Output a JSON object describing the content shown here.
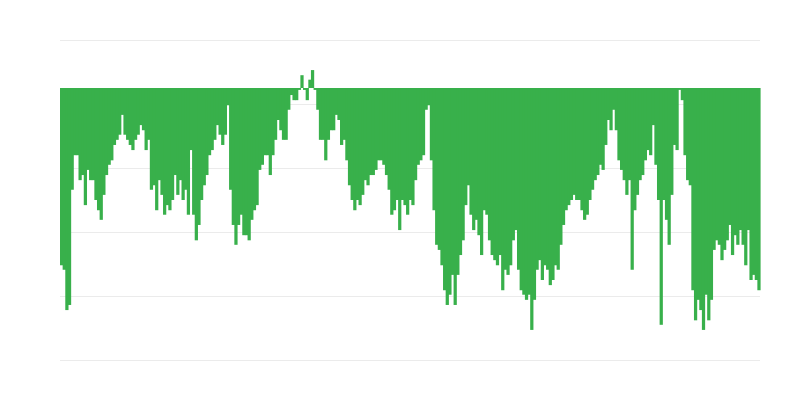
{
  "chart_data": {
    "type": "bar",
    "title": "",
    "xlabel": "",
    "ylabel": "",
    "baseline": 0,
    "ylim": [
      -42.5,
      7.5
    ],
    "gridlines": [
      7.5,
      -2.5,
      -12.5,
      -22.5,
      -32.5,
      -42.5
    ],
    "grid": true,
    "legend": "none",
    "colors": {
      "bar": "#38b04b",
      "grid": "#ebebeb",
      "background": "#ffffff"
    },
    "values": [
      -27.7,
      -28.4,
      -34.7,
      -33.9,
      -15.9,
      -10.5,
      -10.5,
      -14.4,
      -13.6,
      -18.3,
      -12.8,
      -14.4,
      -14.4,
      -17.5,
      -19.1,
      -20.6,
      -16.7,
      -13.6,
      -12.0,
      -11.3,
      -8.9,
      -8.1,
      -7.3,
      -4.2,
      -7.3,
      -8.1,
      -8.9,
      -9.7,
      -8.1,
      -7.3,
      -5.8,
      -6.6,
      -9.7,
      -8.1,
      -15.9,
      -15.2,
      -19.1,
      -14.4,
      -16.7,
      -19.8,
      -18.3,
      -19.1,
      -17.5,
      -13.6,
      -16.7,
      -14.4,
      -17.5,
      -15.9,
      -19.8,
      -9.7,
      -19.8,
      -23.8,
      -21.4,
      -17.5,
      -15.2,
      -13.6,
      -10.5,
      -9.7,
      -8.1,
      -5.8,
      -7.3,
      -8.9,
      -7.3,
      -2.7,
      -15.9,
      -21.4,
      -24.5,
      -21.4,
      -19.8,
      -23.0,
      -23.0,
      -23.8,
      -20.6,
      -19.1,
      -18.3,
      -12.8,
      -12.0,
      -10.5,
      -10.5,
      -13.6,
      -10.5,
      -8.1,
      -5.0,
      -6.6,
      -8.1,
      -8.1,
      -3.4,
      -1.1,
      -1.9,
      -1.9,
      -0.3,
      2.0,
      -0.3,
      -1.9,
      1.3,
      2.8,
      -0.3,
      -3.4,
      -8.1,
      -8.1,
      -11.3,
      -8.1,
      -6.6,
      -6.6,
      -4.2,
      -5.0,
      -8.9,
      -8.1,
      -11.3,
      -15.2,
      -17.5,
      -19.1,
      -17.5,
      -18.3,
      -16.7,
      -14.4,
      -15.2,
      -13.6,
      -13.6,
      -12.8,
      -11.3,
      -11.3,
      -12.0,
      -13.6,
      -15.9,
      -19.8,
      -19.1,
      -17.5,
      -22.2,
      -17.5,
      -18.3,
      -19.8,
      -17.5,
      -18.3,
      -14.4,
      -12.0,
      -11.3,
      -10.5,
      -3.4,
      -2.7,
      -11.3,
      -19.1,
      -24.5,
      -25.3,
      -27.7,
      -31.6,
      -33.9,
      -32.3,
      -29.2,
      -33.9,
      -29.2,
      -26.1,
      -23.8,
      -18.3,
      -15.2,
      -19.8,
      -22.2,
      -20.6,
      -23.0,
      -26.1,
      -19.1,
      -19.8,
      -23.8,
      -26.1,
      -26.9,
      -27.7,
      -26.1,
      -31.6,
      -28.4,
      -29.2,
      -27.7,
      -23.8,
      -22.2,
      -28.4,
      -31.6,
      -32.3,
      -33.1,
      -32.3,
      -37.8,
      -33.1,
      -28.4,
      -26.9,
      -30.0,
      -27.7,
      -28.4,
      -30.8,
      -30.0,
      -27.7,
      -28.4,
      -24.5,
      -21.4,
      -19.1,
      -18.3,
      -17.5,
      -16.7,
      -17.5,
      -17.5,
      -19.1,
      -20.6,
      -19.8,
      -17.5,
      -15.9,
      -14.4,
      -13.6,
      -12.0,
      -12.8,
      -8.9,
      -5.0,
      -6.6,
      -3.4,
      -6.6,
      -11.3,
      -12.8,
      -14.4,
      -16.7,
      -14.4,
      -28.4,
      -19.1,
      -16.7,
      -14.4,
      -13.6,
      -11.3,
      -9.7,
      -10.5,
      -5.8,
      -12.0,
      -17.5,
      -37.0,
      -17.5,
      -20.6,
      -24.5,
      -16.7,
      -8.9,
      -9.7,
      -0.3,
      -1.9,
      -10.5,
      -14.4,
      -15.2,
      -31.6,
      -36.3,
      -33.1,
      -34.7,
      -37.8,
      -32.3,
      -36.3,
      -33.1,
      -25.3,
      -23.8,
      -24.5,
      -26.9,
      -25.3,
      -23.8,
      -21.4,
      -26.1,
      -23.0,
      -24.5,
      -22.2,
      -24.5,
      -27.7,
      -22.2,
      -30.0,
      -29.2,
      -30.0,
      -31.6
    ]
  }
}
